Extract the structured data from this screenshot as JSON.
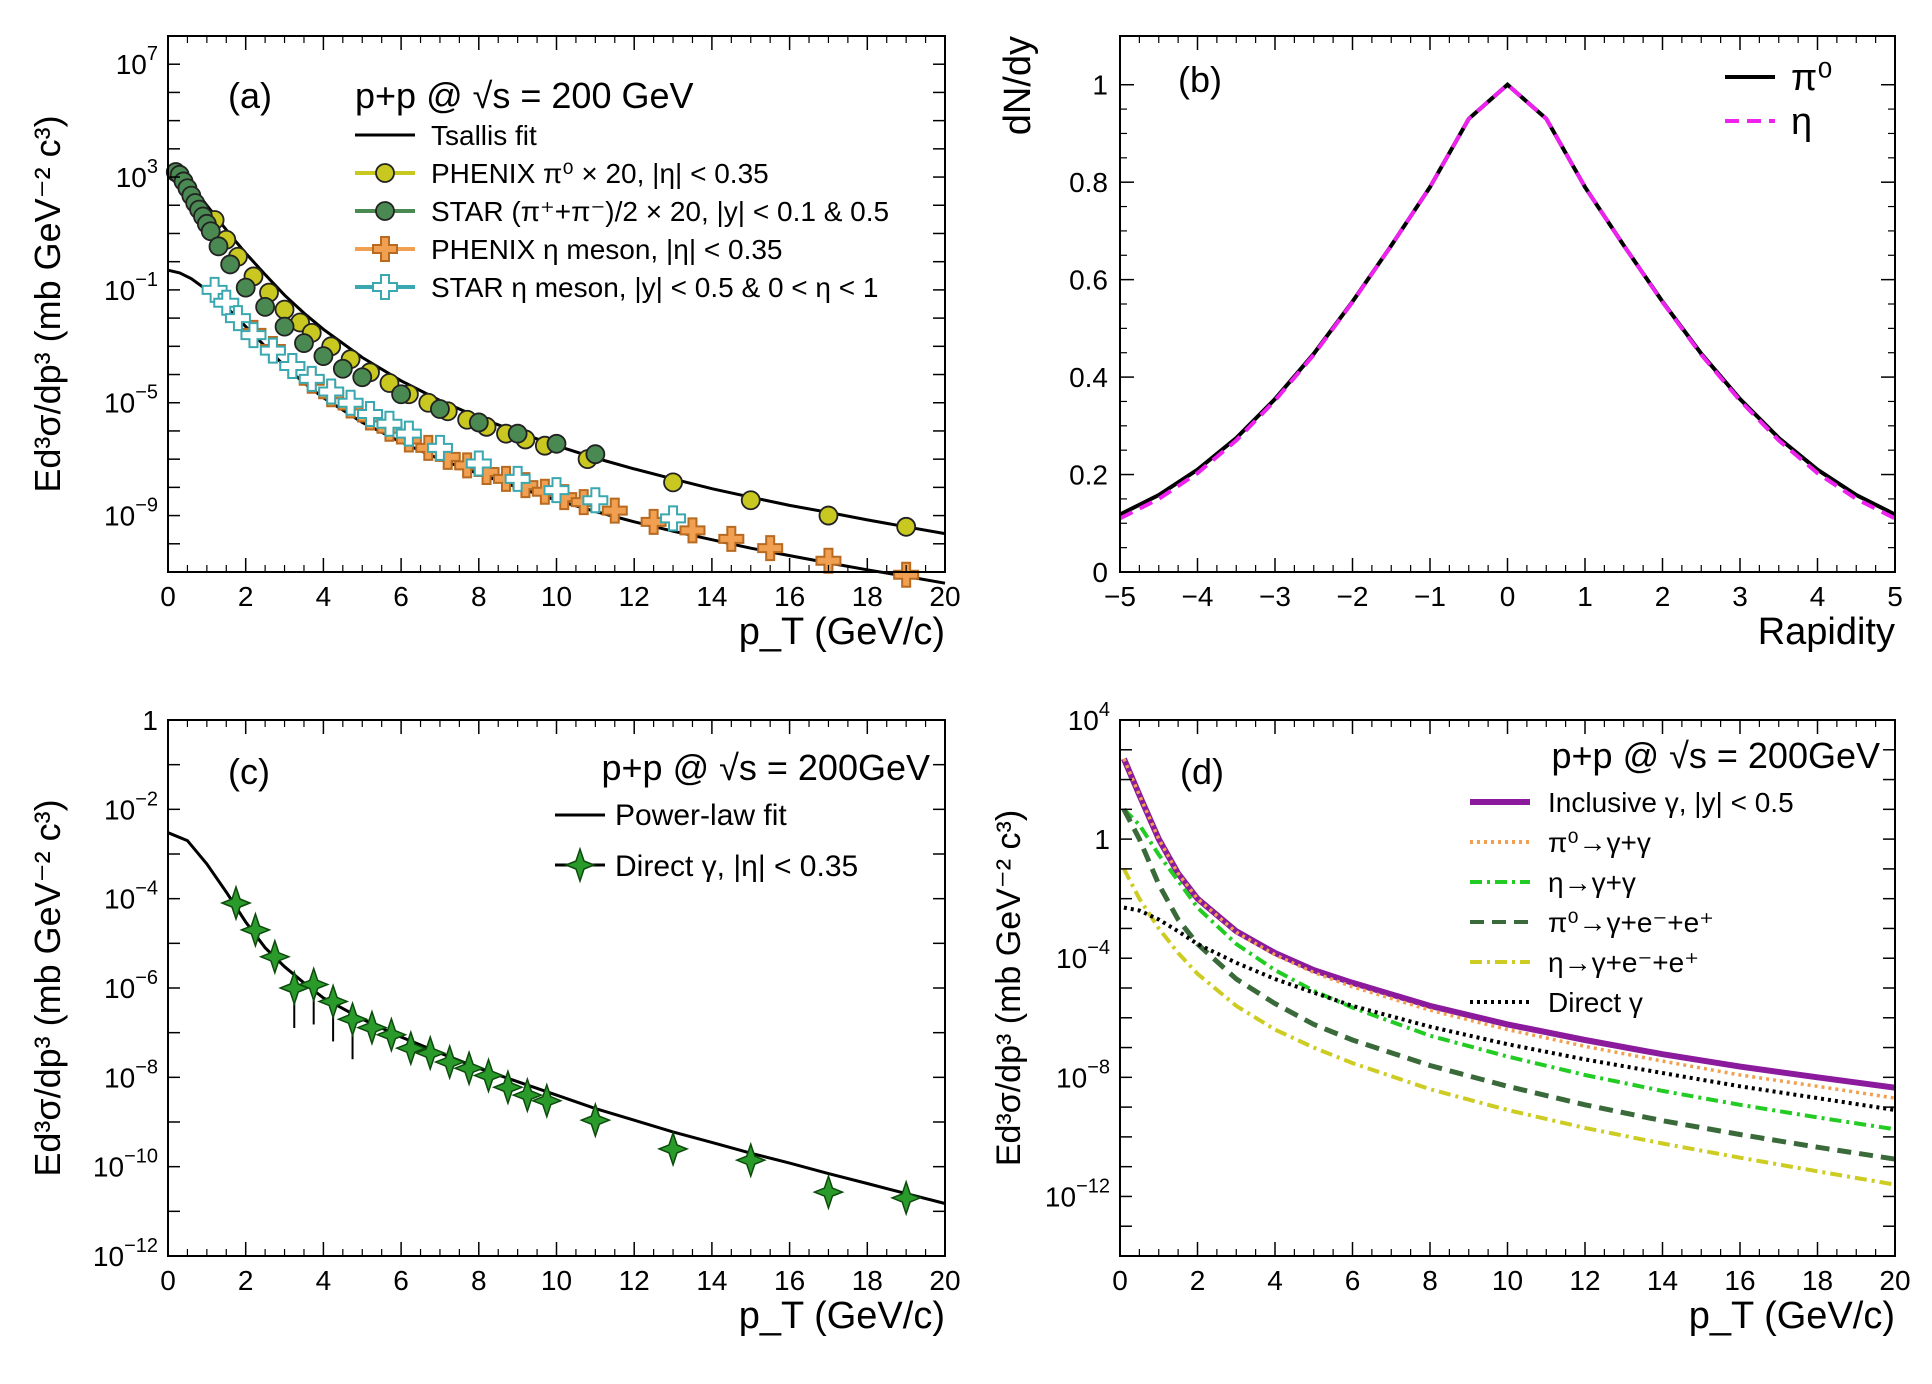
{
  "figure_title": "Four-panel figure: p+p @ √s = 200 GeV spectra, rapidity distribution, direct photons and photon sources",
  "chart_data": [
    {
      "panel": "(a)",
      "type": "scatter",
      "title": "p+p @ √s = 200 GeV",
      "xlabel": "p_T (GeV/c)",
      "ylabel": "Ed³σ/dp³ (mb GeV⁻² c³)",
      "xlim": [
        0,
        20
      ],
      "ylim_log10": [
        -11,
        8
      ],
      "x_ticks": [
        0,
        2,
        4,
        6,
        8,
        10,
        12,
        14,
        16,
        18,
        20
      ],
      "y_tick_labels": [
        {
          "exp": 7,
          "text": "10^7"
        },
        {
          "exp": 3,
          "text": "10^3"
        },
        {
          "exp": -1,
          "text": "10^-1"
        },
        {
          "exp": -5,
          "text": "10^-5"
        },
        {
          "exp": -9,
          "text": "10^-9"
        }
      ],
      "legend": [
        "Tsallis fit",
        "PHENIX π⁰ × 20, |η| < 0.35",
        "STAR (π⁺+π⁻)/2 × 20, |y| < 0.1 & 0.5",
        "PHENIX η meson, |η| < 0.35",
        "STAR η meson, |y| < 0.5 & 0 < η < 1"
      ],
      "series": [
        {
          "name": "Tsallis fit (π)",
          "style": "line",
          "x": [
            0,
            0.2,
            0.4,
            0.6,
            0.8,
            1.0,
            1.3,
            1.6,
            2.0,
            2.5,
            3.0,
            3.5,
            4.0,
            5.0,
            6.0,
            7.0,
            8.0,
            9.0,
            10.0,
            11.0,
            12.0,
            13.0,
            14.0,
            15.0,
            16.0,
            17.0,
            18.0,
            19.0,
            20.0
          ],
          "y": [
            2000.0,
            1600.0,
            900.0,
            450.0,
            220.0,
            100.0,
            30.0,
            9.0,
            2.0,
            0.35,
            0.065,
            0.015,
            0.004,
            0.0004,
            6e-05,
            1.2e-05,
            3e-06,
            9e-07,
            3e-07,
            1.1e-07,
            4.5e-08,
            2e-08,
            9e-09,
            4.5e-09,
            2.3e-09,
            1.3e-09,
            7e-10,
            4e-10,
            2.3e-10
          ]
        },
        {
          "name": "Tsallis fit (η)",
          "style": "line",
          "x": [
            0,
            0.3,
            0.6,
            1.0,
            1.5,
            2.0,
            2.5,
            3.0,
            3.5,
            4.0,
            5.0,
            6.0,
            7.0,
            8.0,
            9.0,
            10.0,
            11.0,
            12.0,
            13.0,
            14.0,
            15.0,
            16.0,
            17.0,
            18.0,
            19.0,
            20.0
          ],
          "y": [
            0.5,
            0.4,
            0.25,
            0.1,
            0.025,
            0.005,
            0.001,
            0.0002,
            5e-05,
            1.5e-05,
            2e-06,
            4e-07,
            1e-07,
            3e-08,
            1e-08,
            3.5e-09,
            1.4e-09,
            6e-10,
            2.8e-10,
            1.4e-10,
            7e-11,
            3.8e-11,
            2.1e-11,
            1.2e-11,
            7e-12,
            4e-12
          ]
        },
        {
          "name": "PHENIX π⁰ × 20, |η| < 0.35",
          "color": "#c8c820",
          "marker": "circle",
          "x": [
            1.2,
            1.5,
            1.8,
            2.2,
            2.6,
            3.0,
            3.4,
            3.7,
            4.2,
            4.7,
            5.2,
            5.7,
            6.2,
            6.7,
            7.2,
            7.7,
            8.2,
            8.7,
            9.2,
            9.7,
            10.8,
            13.0,
            15.0,
            17.0,
            19.0
          ],
          "y": [
            30.0,
            6.0,
            1.5,
            0.3,
            0.08,
            0.02,
            0.007,
            0.003,
            0.001,
            0.00035,
            0.00012,
            5e-05,
            2e-05,
            1e-05,
            5e-06,
            2.5e-06,
            1.4e-06,
            8e-07,
            5e-07,
            3e-07,
            1e-07,
            1.5e-08,
            3.5e-09,
            1e-09,
            4e-10
          ]
        },
        {
          "name": "STAR (π⁺+π⁻)/2 × 20, |y| < 0.1 & 0.5",
          "color": "#4a8a52",
          "marker": "circle",
          "x": [
            0.2,
            0.3,
            0.4,
            0.5,
            0.6,
            0.7,
            0.8,
            0.9,
            1.0,
            1.1,
            1.3,
            1.6,
            2.0,
            2.5,
            3.0,
            3.5,
            4.0,
            4.5,
            5.0,
            6.0,
            7.0,
            8.0,
            9.0,
            10.0,
            11.0
          ],
          "y": [
            1500.0,
            1200.0,
            700.0,
            400.0,
            220.0,
            120.0,
            70.0,
            40.0,
            22.0,
            12.0,
            3.5,
            0.8,
            0.12,
            0.025,
            0.005,
            0.0013,
            0.00045,
            0.00016,
            8e-05,
            2e-05,
            6e-06,
            2e-06,
            8e-07,
            3.5e-07,
            1.5e-07
          ]
        },
        {
          "name": "PHENIX η meson, |η| < 0.35",
          "color": "#f0a050",
          "marker": "cross",
          "x": [
            2.2,
            2.7,
            3.2,
            3.7,
            4.2,
            4.7,
            5.2,
            5.7,
            6.2,
            6.7,
            7.2,
            7.7,
            8.2,
            8.7,
            9.2,
            9.7,
            10.2,
            10.7,
            11.5,
            12.5,
            13.5,
            14.5,
            15.5,
            17.0,
            19.0
          ],
          "y": [
            0.003,
            0.0008,
            0.0002,
            6e-05,
            2e-05,
            8e-06,
            3e-06,
            1.2e-06,
            5e-07,
            2.5e-07,
            1.2e-07,
            6e-08,
            3.5e-08,
            2e-08,
            1.2e-08,
            7e-09,
            4.5e-09,
            3e-09,
            1.5e-09,
            6e-10,
            3e-10,
            1.5e-10,
            7e-11,
            2.5e-11,
            8e-12
          ]
        },
        {
          "name": "STAR η meson, |y| < 0.5 & 0 < η < 1",
          "color": "#3aa8b0",
          "marker": "cross",
          "x": [
            1.2,
            1.5,
            1.8,
            2.2,
            2.7,
            3.2,
            3.7,
            4.2,
            4.7,
            5.2,
            5.7,
            6.2,
            7.0,
            8.0,
            9.0,
            10.0,
            11.0,
            13.0
          ],
          "y": [
            0.1,
            0.035,
            0.01,
            0.0025,
            0.0007,
            0.0002,
            7e-05,
            2.5e-05,
            1e-05,
            4e-06,
            1.8e-06,
            8e-07,
            2.5e-07,
            7e-08,
            2e-08,
            8e-09,
            3.5e-09,
            8e-10
          ]
        }
      ]
    },
    {
      "panel": "(b)",
      "type": "line",
      "xlabel": "Rapidity",
      "ylabel": "dN/dy",
      "xlim": [
        -5,
        5
      ],
      "ylim": [
        0,
        1.1
      ],
      "x_ticks": [
        -5,
        -4,
        -3,
        -2,
        -1,
        0,
        1,
        2,
        3,
        4,
        5
      ],
      "y_ticks": [
        0,
        0.2,
        0.4,
        0.6,
        0.8,
        1
      ],
      "x_tick_labels": [
        "−5",
        "−4",
        "−3",
        "−2",
        "−1",
        "0",
        "1",
        "2",
        "3",
        "4",
        "5"
      ],
      "y_tick_labels": [
        "0",
        "0.2",
        "0.4",
        "0.6",
        "0.8",
        "1"
      ],
      "legend": [
        "π⁰",
        "η"
      ],
      "series": [
        {
          "name": "π⁰",
          "color": "#000000",
          "dash": "solid",
          "x": [
            -5,
            -4.5,
            -4,
            -3.5,
            -3,
            -2.5,
            -2,
            -1.5,
            -1,
            -0.5,
            0,
            0.5,
            1,
            1.5,
            2,
            2.5,
            3,
            3.5,
            4,
            4.5,
            5
          ],
          "y": [
            0.118,
            0.158,
            0.21,
            0.275,
            0.355,
            0.448,
            0.555,
            0.67,
            0.79,
            0.93,
            1.0,
            0.93,
            0.79,
            0.67,
            0.555,
            0.448,
            0.355,
            0.275,
            0.21,
            0.158,
            0.118
          ]
        },
        {
          "name": "η",
          "color": "#ee22ee",
          "dash": "dashed",
          "x": [
            -5,
            -4.5,
            -4,
            -3.5,
            -3,
            -2.5,
            -2,
            -1.5,
            -1,
            -0.5,
            0,
            0.5,
            1,
            1.5,
            2,
            2.5,
            3,
            3.5,
            4,
            4.5,
            5
          ],
          "y": [
            0.11,
            0.15,
            0.203,
            0.27,
            0.352,
            0.446,
            0.554,
            0.67,
            0.79,
            0.93,
            1.0,
            0.93,
            0.79,
            0.67,
            0.554,
            0.446,
            0.352,
            0.27,
            0.203,
            0.15,
            0.11
          ]
        }
      ]
    },
    {
      "panel": "(c)",
      "type": "scatter",
      "title": "p+p @ √s = 200GeV",
      "xlabel": "p_T (GeV/c)",
      "ylabel": "Ed³σ/dp³ (mb GeV⁻² c³)",
      "xlim": [
        0,
        20
      ],
      "ylim_log10": [
        -12,
        0
      ],
      "x_ticks": [
        0,
        2,
        4,
        6,
        8,
        10,
        12,
        14,
        16,
        18,
        20
      ],
      "y_tick_labels": [
        {
          "exp": 0,
          "text": "1"
        },
        {
          "exp": -2,
          "text": "10^-2"
        },
        {
          "exp": -4,
          "text": "10^-4"
        },
        {
          "exp": -6,
          "text": "10^-6"
        },
        {
          "exp": -8,
          "text": "10^-8"
        },
        {
          "exp": -10,
          "text": "10^-10"
        },
        {
          "exp": -12,
          "text": "10^-12"
        }
      ],
      "legend": [
        "Power-law fit",
        "Direct γ, |η| < 0.35"
      ],
      "series": [
        {
          "name": "Power-law fit",
          "style": "line",
          "x": [
            0,
            0.5,
            1.0,
            1.5,
            2.0,
            2.5,
            3.0,
            3.5,
            4.0,
            5.0,
            6.0,
            7.0,
            8.0,
            9.0,
            10.0,
            11.0,
            12.0,
            13.0,
            14.0,
            15.0,
            16.0,
            17.0,
            18.0,
            19.0,
            20.0
          ],
          "y": [
            0.003,
            0.002,
            0.0006,
            0.00014,
            3e-05,
            8e-06,
            3e-06,
            1.3e-06,
            6e-07,
            2e-07,
            8e-08,
            3.5e-08,
            1.6e-08,
            8e-09,
            4e-09,
            2e-09,
            1.1e-09,
            6e-10,
            3.5e-10,
            2e-10,
            1.2e-10,
            7e-11,
            4.2e-11,
            2.5e-11,
            1.5e-11
          ]
        },
        {
          "name": "Direct γ, |η| < 0.35",
          "color": "#2a9a2a",
          "marker": "star",
          "x": [
            1.75,
            2.25,
            2.75,
            3.25,
            3.75,
            4.25,
            4.75,
            5.25,
            5.75,
            6.25,
            6.75,
            7.25,
            7.75,
            8.25,
            8.75,
            9.25,
            9.75,
            11.0,
            13.0,
            15.0,
            17.0,
            19.0
          ],
          "y": [
            8e-05,
            2e-05,
            5e-06,
            1e-06,
            1.2e-06,
            5e-07,
            2e-07,
            1.3e-07,
            9e-08,
            4.5e-08,
            3.5e-08,
            2.2e-08,
            1.6e-08,
            1.1e-08,
            6e-09,
            4e-09,
            3e-09,
            1.1e-09,
            2.5e-10,
            1.4e-10,
            2.7e-11,
            2e-11
          ]
        }
      ]
    },
    {
      "panel": "(d)",
      "type": "line",
      "title": "p+p @ √s = 200GeV",
      "xlabel": "p_T (GeV/c)",
      "ylabel": "Ed³σ/dp³ (mb GeV⁻² c³)",
      "xlim": [
        0,
        20
      ],
      "ylim_log10": [
        -14,
        4
      ],
      "x_ticks": [
        0,
        2,
        4,
        6,
        8,
        10,
        12,
        14,
        16,
        18,
        20
      ],
      "y_tick_labels": [
        {
          "exp": 4,
          "text": "10^4"
        },
        {
          "exp": 0,
          "text": "1"
        },
        {
          "exp": -4,
          "text": "10^-4"
        },
        {
          "exp": -8,
          "text": "10^-8"
        },
        {
          "exp": -12,
          "text": "10^-12"
        }
      ],
      "legend": [
        "Inclusive γ, |y| < 0.5",
        "π⁰→γ+γ",
        "η→γ+γ",
        "π⁰→γ+e⁻+e⁺",
        "η→γ+e⁻+e⁺",
        "Direct γ"
      ],
      "series": [
        {
          "name": "Inclusive γ, |y| < 0.5",
          "color": "#8b1a9c",
          "dash": "solid",
          "x": [
            0.1,
            0.5,
            1.0,
            1.5,
            2.0,
            3.0,
            4.0,
            5.0,
            6.0,
            8.0,
            10.0,
            12.0,
            14.0,
            16.0,
            18.0,
            20.0
          ],
          "y": [
            500.0,
            30.0,
            1.0,
            0.07,
            0.01,
            0.0008,
            0.00015,
            4e-05,
            1.5e-05,
            2.5e-06,
            6e-07,
            1.8e-07,
            6e-08,
            2.3e-08,
            1e-08,
            4.5e-09
          ]
        },
        {
          "name": "π⁰→γ+γ",
          "color": "#f0a050",
          "dash": "dotted",
          "x": [
            0.1,
            0.5,
            1.0,
            1.5,
            2.0,
            3.0,
            4.0,
            5.0,
            6.0,
            8.0,
            10.0,
            12.0,
            14.0,
            16.0,
            18.0,
            20.0
          ],
          "y": [
            500.0,
            30.0,
            1.0,
            0.07,
            0.01,
            0.00075,
            0.00013,
            3.3e-05,
            1.1e-05,
            1.8e-06,
            4e-07,
            1.1e-07,
            3.5e-08,
            1.2e-08,
            5e-09,
            2e-09
          ]
        },
        {
          "name": "η→γ+γ",
          "color": "#22cc22",
          "dash": "dashdot",
          "x": [
            0.1,
            0.5,
            1.0,
            1.5,
            2.0,
            3.0,
            4.0,
            5.0,
            6.0,
            8.0,
            10.0,
            12.0,
            14.0,
            16.0,
            18.0,
            20.0
          ],
          "y": [
            10.0,
            3.0,
            0.3,
            0.04,
            0.005,
            0.0003,
            4e-05,
            8e-06,
            2.2e-06,
            2.5e-07,
            5e-08,
            1.2e-08,
            3.5e-09,
            1.2e-09,
            4.5e-10,
            1.8e-10
          ]
        },
        {
          "name": "π⁰→γ+e⁻+e⁺",
          "color": "#3a6a3a",
          "dash": "dashed",
          "x": [
            0.1,
            0.5,
            1.0,
            1.5,
            2.0,
            3.0,
            4.0,
            5.0,
            6.0,
            8.0,
            10.0,
            12.0,
            14.0,
            16.0,
            18.0,
            20.0
          ],
          "y": [
            10.0,
            1.0,
            0.03,
            0.002,
            0.0003,
            2e-05,
            3e-06,
            6e-07,
            1.8e-07,
            2.5e-08,
            5e-09,
            1.2e-09,
            3.5e-10,
            1.2e-10,
            4.5e-11,
            1.8e-11
          ]
        },
        {
          "name": "η→γ+e⁻+e⁺",
          "color": "#cccc22",
          "dash": "dashdot",
          "x": [
            0.1,
            0.5,
            1.0,
            1.5,
            2.0,
            3.0,
            4.0,
            5.0,
            6.0,
            8.0,
            10.0,
            12.0,
            14.0,
            16.0,
            18.0,
            20.0
          ],
          "y": [
            0.1,
            0.01,
            0.001,
            0.00015,
            3e-05,
            2.5e-06,
            4e-07,
            1e-07,
            3e-08,
            4e-09,
            8e-10,
            2e-10,
            6e-11,
            2e-11,
            7e-12,
            2.5e-12
          ]
        },
        {
          "name": "Direct γ",
          "color": "#000000",
          "dash": "dotted",
          "x": [
            0.1,
            0.5,
            1.0,
            1.5,
            2.0,
            3.0,
            4.0,
            5.0,
            6.0,
            8.0,
            10.0,
            12.0,
            14.0,
            16.0,
            18.0,
            20.0
          ],
          "y": [
            0.005,
            0.004,
            0.002,
            0.0008,
            0.0003,
            7e-05,
            2e-05,
            7e-06,
            2.5e-06,
            5e-07,
            1.3e-07,
            4e-08,
            1.4e-08,
            5e-09,
            2e-09,
            8e-10
          ]
        }
      ]
    }
  ]
}
